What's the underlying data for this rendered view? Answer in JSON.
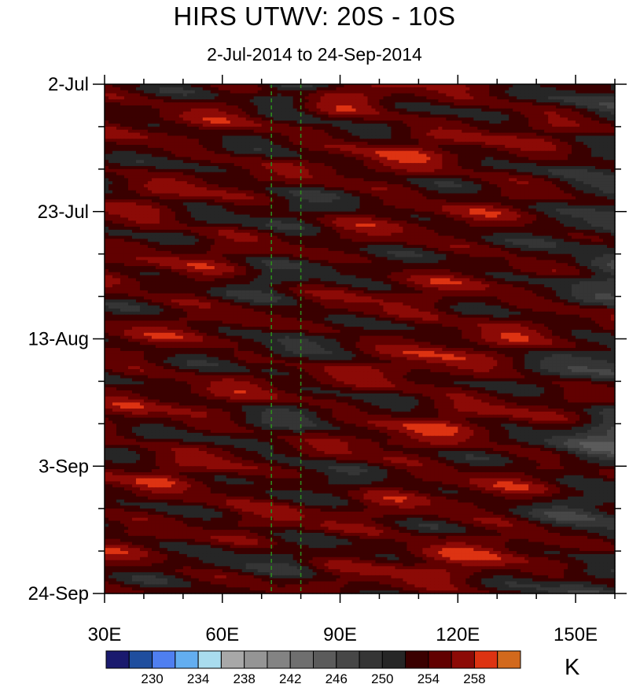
{
  "chart_data": {
    "type": "heatmap",
    "title": "HIRS UTWV: 20S - 10S",
    "subtitle": "2-Jul-2014 to 24-Sep-2014",
    "x_axis": {
      "range": [
        30,
        160
      ],
      "ticks": [
        30,
        60,
        90,
        120,
        150
      ],
      "tick_labels": [
        "30E",
        "60E",
        "90E",
        "120E",
        "150E"
      ]
    },
    "y_axis": {
      "range_days": [
        0,
        84
      ],
      "ticks_days": [
        0,
        21,
        42,
        63,
        84
      ],
      "tick_labels": [
        "2-Jul",
        "23-Jul",
        "13-Aug",
        "3-Sep",
        "24-Sep"
      ],
      "orientation": "time increases downward"
    },
    "reference_lines_lon": [
      72.5,
      80
    ],
    "colorbar": {
      "unit": "K",
      "levels": [
        228,
        230,
        232,
        234,
        236,
        238,
        240,
        242,
        244,
        246,
        248,
        250,
        252,
        254,
        256,
        258
      ],
      "labels": [
        "230",
        "234",
        "238",
        "242",
        "246",
        "250",
        "254",
        "258"
      ],
      "colors": [
        "#1a1a6e",
        "#1f4e9e",
        "#4f7ff0",
        "#63aef0",
        "#a9dcee",
        "#a8a8a8",
        "#959595",
        "#838383",
        "#6f6f6f",
        "#5b5b5b",
        "#474747",
        "#353535",
        "#262626",
        "#3a0000",
        "#610000",
        "#8c0a06",
        "#dd3312",
        "#d2691c"
      ]
    },
    "field_description": "Hovmoller of upper-troposphere water vapor brightness temperature; warm (red/orange, 254-260 K) bands alternate with cool (grey, 238-250 K) bands that propagate eastward."
  }
}
